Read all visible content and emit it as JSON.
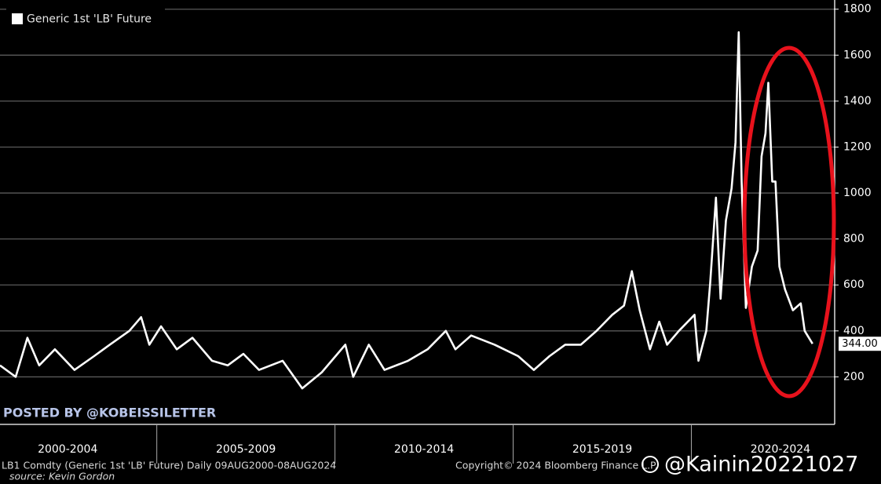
{
  "chart_data": {
    "type": "line",
    "legend_label": "Generic 1st 'LB' Future",
    "legend_position": "upper left",
    "series": [
      {
        "name": "Generic 1st 'LB' Future",
        "color": "#ffffff",
        "x": [
          2000.6,
          2001.04,
          2001.37,
          2001.7,
          2002.14,
          2002.69,
          2003.24,
          2003.68,
          2004.23,
          2004.56,
          2004.79,
          2005.12,
          2005.56,
          2006.0,
          2006.55,
          2006.99,
          2007.43,
          2007.87,
          2008.53,
          2009.08,
          2009.63,
          2010.29,
          2010.51,
          2010.95,
          2011.39,
          2012.05,
          2012.6,
          2013.11,
          2013.38,
          2013.82,
          2014.48,
          2015.14,
          2015.58,
          2016.02,
          2016.46,
          2016.9,
          2017.34,
          2017.78,
          2018.11,
          2018.33,
          2018.55,
          2018.84,
          2019.1,
          2019.32,
          2019.65,
          2020.09,
          2020.2,
          2020.42,
          2020.53,
          2020.69,
          2020.82,
          2020.97,
          2021.13,
          2021.24,
          2021.33,
          2021.41,
          2021.53,
          2021.7,
          2021.86,
          2021.97,
          2022.08,
          2022.16,
          2022.27,
          2022.36,
          2022.47,
          2022.63,
          2022.85,
          2023.07,
          2023.18,
          2023.4
        ],
        "values": [
          250,
          200,
          370,
          250,
          320,
          230,
          290,
          340,
          400,
          460,
          340,
          420,
          320,
          370,
          270,
          250,
          300,
          230,
          270,
          150,
          220,
          340,
          200,
          340,
          230,
          270,
          320,
          400,
          320,
          380,
          340,
          290,
          230,
          290,
          340,
          340,
          400,
          470,
          510,
          660,
          490,
          320,
          440,
          340,
          400,
          470,
          270,
          400,
          610,
          980,
          540,
          880,
          1020,
          1220,
          1700,
          1050,
          500,
          680,
          750,
          1160,
          1260,
          1480,
          1050,
          1050,
          680,
          580,
          490,
          520,
          400,
          344
        ]
      }
    ],
    "last_value": {
      "value": 344,
      "label": "344.00"
    },
    "xlim": [
      2000.6,
      2024.0
    ],
    "xticks": [
      2005,
      2010,
      2015,
      2020
    ],
    "x_period_labels": [
      "2000-2004",
      "2005-2009",
      "2010-2014",
      "2015-2019",
      "2020-2024"
    ],
    "ylim": [
      0,
      1840
    ],
    "yticks": [
      200,
      400,
      600,
      800,
      1000,
      1200,
      1400,
      1600,
      1800
    ],
    "grid": true,
    "y_axis_side": "right",
    "footer": "LB1 Comdty (Generic 1st 'LB' Future)  Daily 09AUG2000-08AUG2024",
    "copyright": "Copyright© 2024 Bloomberg Finance L.P.",
    "source": "source: Kevin Gordon",
    "posted_by": "POSTED BY @KOBEISSILETTER",
    "watermark": "@Kainin20221027"
  }
}
